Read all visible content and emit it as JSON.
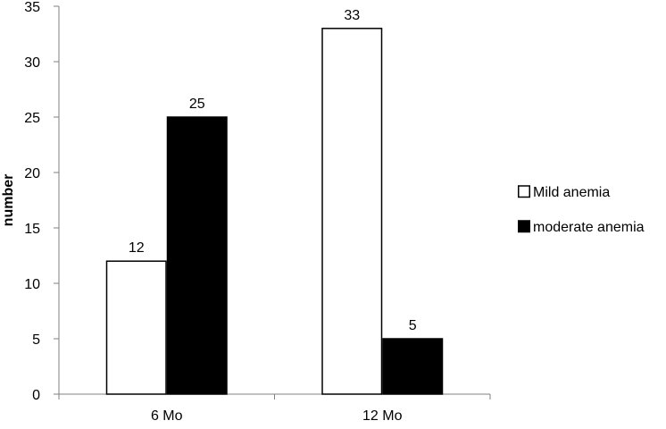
{
  "chart_data": {
    "type": "bar",
    "title": "",
    "xlabel": "",
    "ylabel": "number",
    "categories": [
      "6 Mo",
      "12 Mo"
    ],
    "series": [
      {
        "name": "Mild anemia",
        "values": [
          12,
          33
        ],
        "color": "#ffffff",
        "stroke": "#000000"
      },
      {
        "name": "moderate anemia",
        "values": [
          25,
          5
        ],
        "color": "#000000",
        "stroke": "#000000"
      }
    ],
    "ylim": [
      0,
      35
    ],
    "yticks": [
      0,
      5,
      10,
      15,
      20,
      25,
      30,
      35
    ],
    "grid": false,
    "legend_position": "right",
    "data_labels": true
  }
}
